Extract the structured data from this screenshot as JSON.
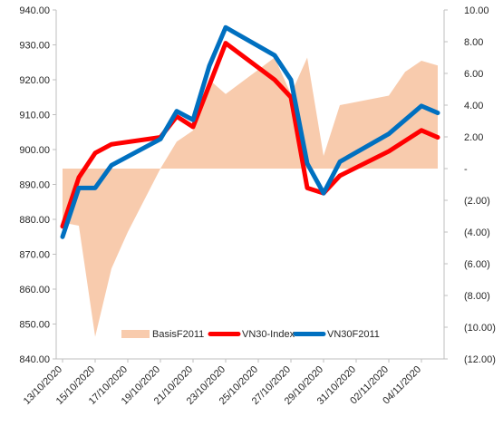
{
  "chart_data": {
    "type": "line",
    "dates": [
      "13/10/2020",
      "14/10/2020",
      "15/10/2020",
      "16/10/2020",
      "17/10/2020",
      "19/10/2020",
      "20/10/2020",
      "21/10/2020",
      "22/10/2020",
      "23/10/2020",
      "26/10/2020",
      "27/10/2020",
      "28/10/2020",
      "29/10/2020",
      "30/10/2020",
      "02/11/2020",
      "03/11/2020",
      "04/11/2020",
      "05/11/2020"
    ],
    "date_tick_labels": [
      "13/10/2020",
      "15/10/2020",
      "17/10/2020",
      "19/10/2020",
      "21/10/2020",
      "23/10/2020",
      "25/10/2020",
      "27/10/2020",
      "29/10/2020",
      "31/10/2020",
      "02/11/2020",
      "04/11/2020"
    ],
    "y_left": {
      "min": 840,
      "max": 940,
      "step": 10,
      "tick_labels": [
        "840.00",
        "850.00",
        "860.00",
        "870.00",
        "880.00",
        "890.00",
        "900.00",
        "910.00",
        "920.00",
        "930.00",
        "940.00"
      ]
    },
    "y_right": {
      "min": -12,
      "max": 10,
      "step": 2,
      "tick_labels": [
        "(12.00)",
        "(10.00)",
        "(8.00)",
        "(6.00)",
        "(4.00)",
        "(2.00)",
        "-",
        "2.00",
        "4.00",
        "6.00",
        "8.00",
        "10.00"
      ]
    },
    "series": [
      {
        "name": "BasisF2011",
        "type": "area",
        "axis": "right",
        "color": "#F8CBAD",
        "points": [
          {
            "x": "13/10/2020",
            "y": -3.4
          },
          {
            "x": "14/10/2020",
            "y": -3.6
          },
          {
            "x": "15/10/2020",
            "y": -10.6
          },
          {
            "x": "16/10/2020",
            "y": -6.3
          },
          {
            "x": "17/10/2020",
            "y": -4.0
          },
          {
            "x": "19/10/2020",
            "y": 0.0
          },
          {
            "x": "20/10/2020",
            "y": 1.7
          },
          {
            "x": "21/10/2020",
            "y": 2.4
          },
          {
            "x": "22/10/2020",
            "y": 5.6
          },
          {
            "x": "23/10/2020",
            "y": 4.7
          },
          {
            "x": "26/10/2020",
            "y": 7.0
          },
          {
            "x": "27/10/2020",
            "y": 4.7
          },
          {
            "x": "28/10/2020",
            "y": 7.0
          },
          {
            "x": "29/10/2020",
            "y": 0.8
          },
          {
            "x": "30/10/2020",
            "y": 4.0
          },
          {
            "x": "02/11/2020",
            "y": 4.6
          },
          {
            "x": "03/11/2020",
            "y": 6.1
          },
          {
            "x": "04/11/2020",
            "y": 6.8
          },
          {
            "x": "05/11/2020",
            "y": 6.5
          }
        ]
      },
      {
        "name": "VN30-Index",
        "type": "line",
        "axis": "left",
        "color": "#FF0000",
        "points": [
          {
            "x": "13/10/2020",
            "y": 878.0
          },
          {
            "x": "14/10/2020",
            "y": 892.0
          },
          {
            "x": "15/10/2020",
            "y": 899.0
          },
          {
            "x": "16/10/2020",
            "y": 901.5
          },
          {
            "x": "19/10/2020",
            "y": 903.5
          },
          {
            "x": "20/10/2020",
            "y": 909.5
          },
          {
            "x": "21/10/2020",
            "y": 906.5
          },
          {
            "x": "23/10/2020",
            "y": 930.5
          },
          {
            "x": "26/10/2020",
            "y": 920.0
          },
          {
            "x": "27/10/2020",
            "y": 915.0
          },
          {
            "x": "28/10/2020",
            "y": 889.0
          },
          {
            "x": "29/10/2020",
            "y": 887.5
          },
          {
            "x": "30/10/2020",
            "y": 892.5
          },
          {
            "x": "02/11/2020",
            "y": 899.5
          },
          {
            "x": "04/11/2020",
            "y": 905.5
          },
          {
            "x": "05/11/2020",
            "y": 903.5
          }
        ]
      },
      {
        "name": "VN30F2011",
        "type": "line",
        "axis": "left",
        "color": "#0070C0",
        "points": [
          {
            "x": "13/10/2020",
            "y": 875.0
          },
          {
            "x": "14/10/2020",
            "y": 889.0
          },
          {
            "x": "15/10/2020",
            "y": 889.0
          },
          {
            "x": "16/10/2020",
            "y": 895.5
          },
          {
            "x": "19/10/2020",
            "y": 903.0
          },
          {
            "x": "20/10/2020",
            "y": 911.0
          },
          {
            "x": "21/10/2020",
            "y": 908.5
          },
          {
            "x": "22/10/2020",
            "y": 924.0
          },
          {
            "x": "23/10/2020",
            "y": 935.0
          },
          {
            "x": "26/10/2020",
            "y": 927.0
          },
          {
            "x": "27/10/2020",
            "y": 920.0
          },
          {
            "x": "28/10/2020",
            "y": 896.0
          },
          {
            "x": "29/10/2020",
            "y": 887.5
          },
          {
            "x": "30/10/2020",
            "y": 896.5
          },
          {
            "x": "02/11/2020",
            "y": 904.5
          },
          {
            "x": "04/11/2020",
            "y": 912.5
          },
          {
            "x": "05/11/2020",
            "y": 910.5
          }
        ]
      }
    ],
    "legend": [
      {
        "name": "BasisF2011",
        "color": "#F8CBAD",
        "kind": "swatch"
      },
      {
        "name": "VN30-Index",
        "color": "#FF0000",
        "kind": "line"
      },
      {
        "name": "VN30F2011",
        "color": "#0070C0",
        "kind": "line"
      }
    ],
    "legend_position": "bottom-center",
    "axis_color": "#bfbfbf",
    "grid": false
  }
}
